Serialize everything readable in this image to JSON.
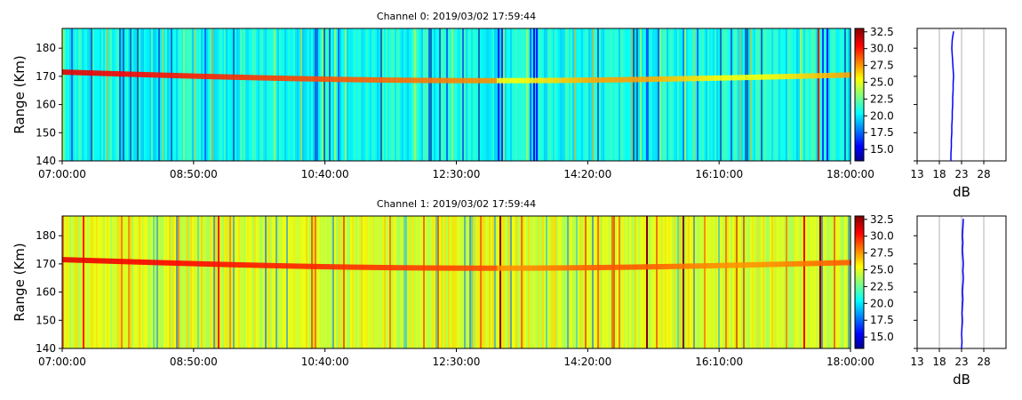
{
  "chart_data": [
    {
      "type": "heatmap",
      "title": "Channel 0: 2019/03/02 17:59:44",
      "ylabel": "Range (Km)",
      "xlim": [
        "07:00:00",
        "18:00:00"
      ],
      "ylim": [
        140,
        187
      ],
      "x_ticks": [
        "07:00:00",
        "08:50:00",
        "10:40:00",
        "12:30:00",
        "14:20:00",
        "16:10:00",
        "18:00:00"
      ],
      "y_ticks": [
        140,
        150,
        160,
        170,
        180
      ],
      "colorbar": {
        "colormap": "jet",
        "range": [
          13.3,
          33
        ],
        "ticks": [
          "15.0",
          "17.5",
          "20.0",
          "22.5",
          "25.0",
          "27.5",
          "30.0",
          "32.5"
        ]
      },
      "background_level_db": 21,
      "echo_layer": {
        "range_km_start": 171.5,
        "range_km_end": 170.5,
        "peak_db": 31
      },
      "profile": {
        "xlabel": "dB",
        "x_ticks": [
          13,
          18,
          23,
          28
        ],
        "xlim": [
          13,
          33
        ],
        "grid": true,
        "color": "#0000ff",
        "values_db": [
          20.6,
          20.6,
          20.7,
          20.7,
          20.8,
          20.8,
          20.9,
          20.9,
          21.0,
          21.0,
          21.1,
          21.1,
          21.2,
          21.1,
          21.0,
          20.9,
          20.8,
          20.9,
          21.2
        ],
        "ranges_km": [
          140,
          142.5,
          145,
          147.5,
          150,
          152.5,
          155,
          157.5,
          160,
          162.5,
          165,
          167.5,
          170,
          172.5,
          175,
          177.5,
          180,
          183,
          186
        ]
      }
    },
    {
      "type": "heatmap",
      "title": "Channel 1: 2019/03/02 17:59:44",
      "ylabel": "Range (Km)",
      "xlim": [
        "07:00:00",
        "18:00:00"
      ],
      "ylim": [
        140,
        187
      ],
      "x_ticks": [
        "07:00:00",
        "08:50:00",
        "10:40:00",
        "12:30:00",
        "14:20:00",
        "16:10:00",
        "18:00:00"
      ],
      "y_ticks": [
        140,
        150,
        160,
        170,
        180
      ],
      "colorbar": {
        "colormap": "jet",
        "range": [
          13.3,
          33
        ],
        "ticks": [
          "15.0",
          "17.5",
          "20.0",
          "22.5",
          "25.0",
          "27.5",
          "30.0",
          "32.5"
        ]
      },
      "background_level_db": 25,
      "echo_layer": {
        "range_km_start": 171.5,
        "range_km_end": 170.5,
        "peak_db": 31
      },
      "profile": {
        "xlabel": "dB",
        "x_ticks": [
          13,
          18,
          23,
          28
        ],
        "xlim": [
          13,
          33
        ],
        "grid": true,
        "color": "#0000ff",
        "values_db": [
          23.0,
          23.1,
          23.0,
          23.1,
          23.2,
          23.1,
          23.2,
          23.3,
          23.2,
          23.3,
          23.4,
          23.3,
          23.4,
          23.3,
          23.2,
          23.3,
          23.2,
          23.3,
          23.4
        ],
        "ranges_km": [
          140,
          142.5,
          145,
          147.5,
          150,
          152.5,
          155,
          157.5,
          160,
          162.5,
          165,
          167.5,
          170,
          172.5,
          175,
          177.5,
          180,
          183,
          186
        ]
      }
    }
  ]
}
